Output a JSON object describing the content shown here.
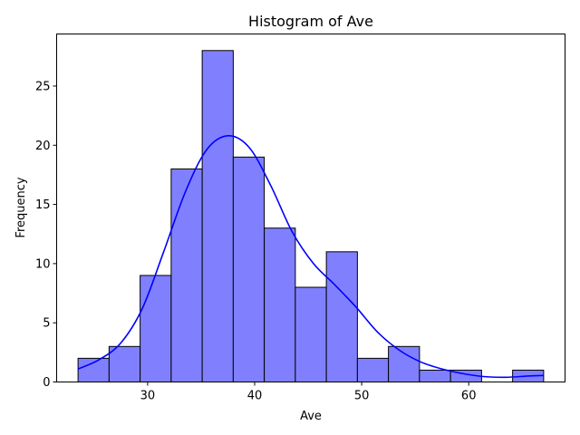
{
  "chart_data": {
    "type": "bar",
    "title": "Histogram of Ave",
    "xlabel": "Ave",
    "ylabel": "Frequency",
    "xlim": [
      21.5,
      69.0
    ],
    "ylim": [
      0,
      29.4
    ],
    "grid": false,
    "legend": "none",
    "bin_edges": [
      23.5,
      26.4,
      29.3,
      32.2,
      35.1,
      38.0,
      40.9,
      43.8,
      46.7,
      49.6,
      52.5,
      55.4,
      58.3,
      61.2,
      64.1,
      67.0
    ],
    "values": [
      2,
      3,
      9,
      18,
      28,
      19,
      13,
      8,
      11,
      2,
      3,
      1,
      1,
      0,
      1
    ],
    "kde": {
      "x": [
        23.5,
        25.5,
        27.5,
        29.5,
        31.5,
        33.5,
        35.5,
        37.5,
        39.5,
        41.5,
        43.5,
        45.5,
        47.5,
        49.5,
        51.5,
        53.5,
        55.5,
        57.5,
        59.5,
        61.5,
        63.5,
        65.5,
        67.0
      ],
      "y": [
        1.1,
        1.9,
        3.3,
        6.2,
        11.0,
        16.0,
        19.6,
        20.8,
        19.8,
        16.6,
        12.7,
        10.0,
        8.2,
        6.3,
        4.2,
        2.7,
        1.7,
        1.1,
        0.7,
        0.45,
        0.4,
        0.5,
        0.55
      ]
    },
    "xticks": [
      30,
      40,
      50,
      60
    ],
    "yticks": [
      0,
      5,
      10,
      15,
      20,
      25
    ],
    "bar_color": "#8080ff",
    "bar_edge_color": "#000000",
    "kde_color": "#0000ff"
  }
}
